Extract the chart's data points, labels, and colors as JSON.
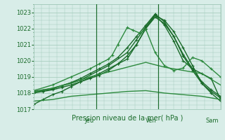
{
  "bg_color": "#d8ede8",
  "grid_color": "#a0c8b8",
  "line_color_dark": "#1a6b2a",
  "line_color_medium": "#2d8a3e",
  "xlabel": "Pression niveau de la mer( hPa )",
  "ylim": [
    1017,
    1023.5
  ],
  "day_labels": [
    "Jeu",
    "Ven",
    "Sam"
  ],
  "day_positions": [
    0.3333,
    0.6667,
    1.0
  ],
  "lines": [
    {
      "x": [
        0,
        0.05,
        0.1,
        0.15,
        0.2,
        0.25,
        0.3,
        0.35,
        0.4,
        0.45,
        0.5,
        0.55,
        0.6,
        0.65,
        0.7,
        0.75,
        0.8,
        0.85,
        0.9,
        0.95,
        1.0
      ],
      "y": [
        1017.3,
        1017.6,
        1017.9,
        1018.1,
        1018.4,
        1018.7,
        1018.95,
        1019.2,
        1019.5,
        1019.8,
        1020.1,
        1021.0,
        1022.0,
        1022.8,
        1022.5,
        1021.8,
        1020.8,
        1019.7,
        1018.6,
        1018.0,
        1017.5
      ],
      "marker": true,
      "dark": true
    },
    {
      "x": [
        0,
        0.05,
        0.1,
        0.15,
        0.2,
        0.25,
        0.3,
        0.35,
        0.4,
        0.45,
        0.5,
        0.55,
        0.6,
        0.65,
        0.7,
        0.75,
        0.8,
        0.85,
        0.9,
        0.95,
        1.0
      ],
      "y": [
        1018.0,
        1018.1,
        1018.2,
        1018.35,
        1018.5,
        1018.7,
        1018.9,
        1019.1,
        1019.4,
        1019.8,
        1020.3,
        1021.0,
        1022.0,
        1022.7,
        1022.3,
        1021.5,
        1020.4,
        1019.5,
        1018.7,
        1018.2,
        1017.8
      ],
      "marker": true,
      "dark": true
    },
    {
      "x": [
        0,
        0.05,
        0.1,
        0.15,
        0.2,
        0.25,
        0.3,
        0.35,
        0.4,
        0.45,
        0.5,
        0.55,
        0.6,
        0.65,
        0.7,
        0.75,
        0.8,
        0.85,
        0.9,
        0.95,
        1.0
      ],
      "y": [
        1018.05,
        1018.15,
        1018.25,
        1018.45,
        1018.65,
        1018.9,
        1019.2,
        1019.5,
        1019.8,
        1020.2,
        1020.8,
        1021.5,
        1022.2,
        1022.9,
        1022.4,
        1021.5,
        1020.3,
        1019.4,
        1018.6,
        1018.1,
        1017.7
      ],
      "marker": true,
      "dark": true
    },
    {
      "x": [
        0,
        0.1,
        0.25,
        0.4,
        0.5,
        0.55,
        0.6,
        0.65,
        0.7,
        0.75,
        0.8,
        0.85,
        0.9,
        0.95,
        1.0
      ],
      "y": [
        1018.1,
        1018.3,
        1018.8,
        1019.7,
        1020.5,
        1021.3,
        1022.1,
        1022.85,
        1022.2,
        1021.2,
        1020.0,
        1019.5,
        1019.2,
        1018.9,
        1017.6
      ],
      "marker": true,
      "dark": true
    },
    {
      "x": [
        0,
        0.1,
        0.2,
        0.3,
        0.35,
        0.4,
        0.42,
        0.45,
        0.5,
        0.53,
        0.57,
        0.6,
        0.65,
        0.7,
        0.75,
        0.8,
        0.85,
        0.9,
        0.95,
        1.0
      ],
      "y": [
        1018.15,
        1018.5,
        1019.0,
        1019.5,
        1019.8,
        1020.1,
        1020.35,
        1021.0,
        1022.05,
        1021.9,
        1021.7,
        1021.95,
        1020.5,
        1019.7,
        1019.4,
        1019.55,
        1020.2,
        1020.0,
        1019.5,
        1019.0
      ],
      "marker": true,
      "dark": false
    },
    {
      "x": [
        0,
        0.1,
        0.2,
        0.3,
        0.4,
        0.5,
        0.6,
        0.7,
        0.8,
        0.9,
        1.0
      ],
      "y": [
        1018.05,
        1018.3,
        1018.6,
        1019.0,
        1019.3,
        1019.6,
        1019.9,
        1019.6,
        1019.4,
        1019.2,
        1018.5
      ],
      "marker": false,
      "dark": false
    },
    {
      "x": [
        0,
        0.1,
        0.2,
        0.3,
        0.4,
        0.5,
        0.6,
        0.7,
        0.8,
        0.9,
        1.0
      ],
      "y": [
        1017.5,
        1017.6,
        1017.8,
        1017.9,
        1018.0,
        1018.1,
        1018.15,
        1018.0,
        1017.9,
        1017.8,
        1017.6
      ],
      "marker": false,
      "dark": false
    }
  ]
}
